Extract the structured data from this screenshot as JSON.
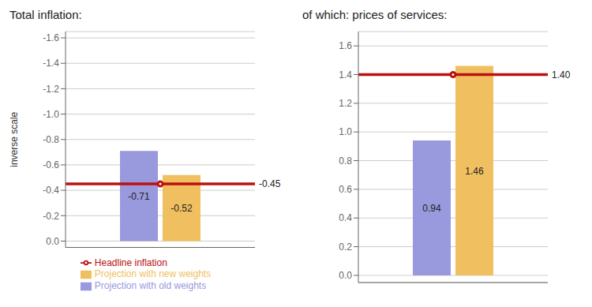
{
  "chart_data": [
    {
      "type": "bar",
      "title": "Total inflation:",
      "ylabel": "inverse scale",
      "categories": [
        null
      ],
      "series": [
        {
          "name": "Projection with old weights",
          "type": "bar",
          "color": "#9999dd",
          "values": [
            -0.71
          ]
        },
        {
          "name": "Projection with new weights",
          "type": "bar",
          "color": "#f0c060",
          "values": [
            -0.52
          ]
        },
        {
          "name": "Headline inflation",
          "type": "line",
          "color": "#bb1111",
          "values": [
            -0.45
          ]
        }
      ],
      "ylim": [
        0.05,
        -1.65
      ],
      "yticks": [
        {
          "value": 0.0,
          "label": "0.0"
        },
        -0.2,
        -0.4,
        -0.6,
        -0.8,
        {
          "value": -1.0,
          "label": "-1.0"
        },
        -1.2,
        -1.4,
        -1.6
      ],
      "grid": true,
      "legend": "bottom",
      "data_labels": true
    },
    {
      "type": "bar",
      "title": "of which: prices of services:",
      "categories": [
        null
      ],
      "series": [
        {
          "name": "Projection with old weights",
          "type": "bar",
          "color": "#9999dd",
          "values": [
            0.94
          ]
        },
        {
          "name": "Projection with new weights",
          "type": "bar",
          "color": "#f0c060",
          "values": [
            1.46
          ]
        },
        {
          "name": "Headline inflation",
          "type": "line",
          "color": "#bb1111",
          "values": [
            1.4
          ],
          "value_labels": [
            "1.40"
          ]
        }
      ],
      "ylim": [
        -0.05,
        1.7
      ],
      "yticks": [
        {
          "value": 0,
          "label": "0.0"
        },
        0.2,
        0.4,
        0.6,
        0.8,
        {
          "value": 1,
          "label": "1.0"
        },
        1.2,
        1.4,
        1.6
      ],
      "grid": true,
      "data_labels": true
    }
  ]
}
